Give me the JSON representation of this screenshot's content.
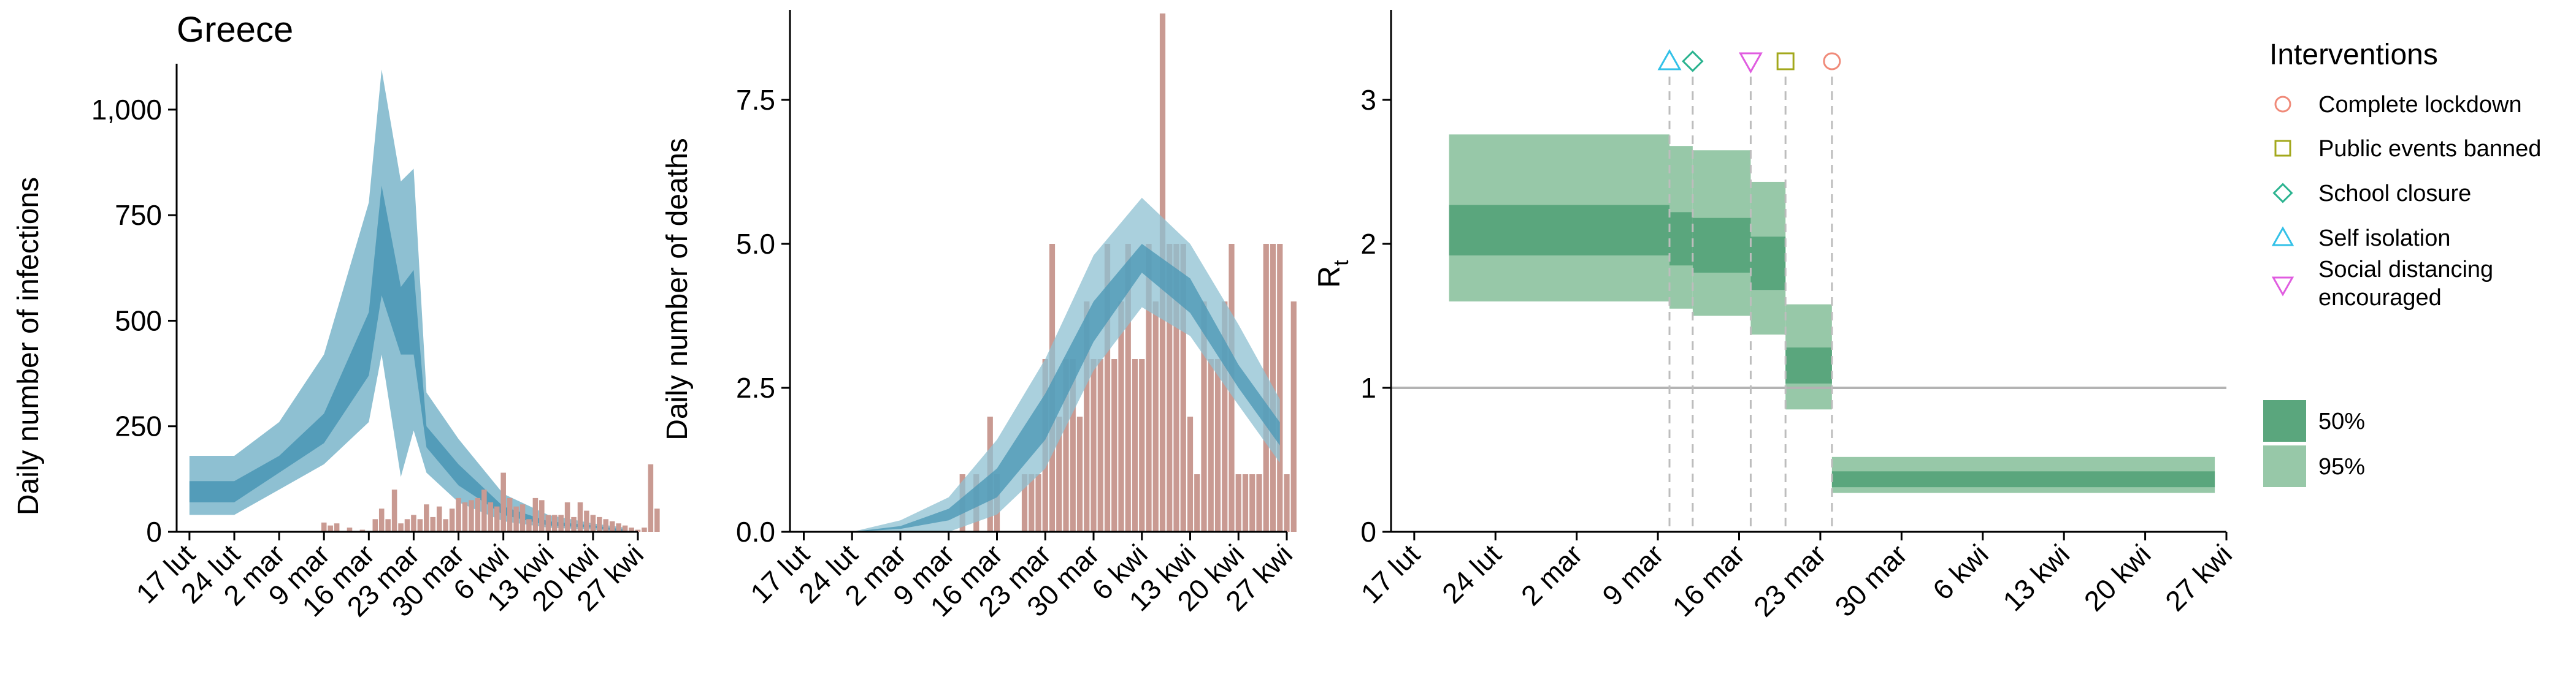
{
  "country_title": "Greece",
  "colors": {
    "bars": "#c99a92",
    "band_95_blue": "#8ec0d2",
    "band_50_blue": "#4d98b6",
    "line_blue": "#2a7ea0",
    "band_95_green": "#97c8a8",
    "band_50_green": "#5aa67d",
    "line_green": "#3f9463",
    "ref_line": "#b3b3b3",
    "intervention_line": "#bdbdbd"
  },
  "x_tick_labels": [
    "17 lut",
    "24 lut",
    "2 mar",
    "9 mar",
    "16 mar",
    "23 mar",
    "30 mar",
    "6 kwi",
    "13 kwi",
    "20 kwi",
    "27 kwi"
  ],
  "chart_data": [
    {
      "type": "bar",
      "id": "infections",
      "ylabel": "Daily number of infections",
      "ylim": [
        0,
        1100
      ],
      "yticks": [
        0,
        250,
        500,
        750,
        1000
      ],
      "ytick_labels": [
        "0",
        "250",
        "500",
        "750",
        "1,000"
      ],
      "x_range": [
        "2020-02-15",
        "2020-04-27"
      ],
      "bars": {
        "start": "2020-03-04",
        "values": [
          0,
          0,
          0,
          0,
          0,
          22,
          15,
          20,
          0,
          10,
          0,
          5,
          0,
          30,
          55,
          30,
          100,
          20,
          30,
          40,
          30,
          65,
          35,
          60,
          30,
          55,
          80,
          70,
          75,
          80,
          100,
          70,
          60,
          140,
          80,
          60,
          65,
          30,
          80,
          75,
          40,
          40,
          40,
          70,
          35,
          70,
          50,
          40,
          35,
          30,
          25,
          20,
          15,
          10,
          5,
          10,
          160,
          55
        ]
      },
      "band_dates": [
        "2020-02-17",
        "2020-02-24",
        "2020-03-02",
        "2020-03-09",
        "2020-03-16",
        "2020-03-18",
        "2020-03-21",
        "2020-03-23",
        "2020-03-25",
        "2020-03-30",
        "2020-04-06",
        "2020-04-13",
        "2020-04-20",
        "2020-04-25"
      ],
      "band_95_upper": [
        180,
        180,
        260,
        420,
        780,
        1095,
        830,
        860,
        330,
        220,
        90,
        40,
        20,
        10
      ],
      "band_95_lower": [
        40,
        40,
        100,
        160,
        260,
        420,
        130,
        240,
        140,
        70,
        25,
        10,
        5,
        0
      ],
      "band_50_upper": [
        120,
        120,
        180,
        280,
        520,
        820,
        580,
        620,
        250,
        160,
        60,
        25,
        15,
        5
      ],
      "band_50_lower": [
        70,
        70,
        140,
        210,
        370,
        560,
        420,
        420,
        200,
        110,
        40,
        15,
        10,
        0
      ]
    },
    {
      "type": "bar",
      "id": "deaths",
      "ylabel": "Daily number of deaths",
      "ylim": [
        0,
        9
      ],
      "yticks": [
        0,
        2.5,
        5,
        7.5
      ],
      "ytick_labels": [
        "0.0",
        "2.5",
        "5.0",
        "7.5"
      ],
      "x_range": [
        "2020-02-15",
        "2020-04-27"
      ],
      "bars": {
        "start": "2020-03-11",
        "values": [
          1,
          0,
          1,
          0,
          2,
          1,
          0,
          0,
          0,
          1,
          1,
          1,
          3,
          5,
          2,
          3,
          3,
          2,
          4,
          3,
          3,
          5,
          3,
          4,
          5,
          3,
          3,
          5,
          4,
          9,
          5,
          5,
          5,
          2,
          1,
          4,
          3,
          3,
          4,
          5,
          1,
          1,
          1,
          1,
          5,
          5,
          5,
          1,
          4
        ]
      },
      "band_dates": [
        "2020-02-24",
        "2020-03-02",
        "2020-03-09",
        "2020-03-16",
        "2020-03-23",
        "2020-03-30",
        "2020-04-06",
        "2020-04-13",
        "2020-04-20",
        "2020-04-26"
      ],
      "band_95_upper": [
        0,
        0.2,
        0.6,
        1.6,
        3.0,
        4.8,
        5.8,
        5.0,
        3.6,
        2.3
      ],
      "band_95_lower": [
        0,
        0,
        0,
        0.3,
        1.1,
        2.8,
        3.9,
        3.4,
        2.2,
        1.2
      ],
      "band_50_upper": [
        0,
        0.1,
        0.4,
        1.1,
        2.4,
        4.0,
        5.0,
        4.4,
        2.9,
        1.9
      ],
      "band_50_lower": [
        0,
        0.05,
        0.2,
        0.6,
        1.6,
        3.3,
        4.5,
        3.8,
        2.5,
        1.5
      ]
    },
    {
      "type": "step-band",
      "id": "rt",
      "ylabel_main": "R",
      "ylabel_sub": "t",
      "ylim": [
        0,
        3.6
      ],
      "yticks": [
        0,
        1,
        2,
        3
      ],
      "ytick_labels": [
        "0",
        "1",
        "2",
        "3"
      ],
      "x_range": [
        "2020-02-15",
        "2020-04-27"
      ],
      "reference_line": 1,
      "segments": [
        {
          "start": "2020-02-20",
          "end": "2020-03-10",
          "r50": [
            1.92,
            2.27
          ],
          "r95": [
            1.6,
            2.76
          ]
        },
        {
          "start": "2020-03-10",
          "end": "2020-03-12",
          "r50": [
            1.85,
            2.22
          ],
          "r95": [
            1.55,
            2.68
          ]
        },
        {
          "start": "2020-03-12",
          "end": "2020-03-17",
          "r50": [
            1.8,
            2.18
          ],
          "r95": [
            1.5,
            2.65
          ]
        },
        {
          "start": "2020-03-17",
          "end": "2020-03-20",
          "r50": [
            1.68,
            2.05
          ],
          "r95": [
            1.37,
            2.43
          ]
        },
        {
          "start": "2020-03-20",
          "end": "2020-03-24",
          "r50": [
            1.03,
            1.28
          ],
          "r95": [
            0.85,
            1.58
          ]
        },
        {
          "start": "2020-03-24",
          "end": "2020-04-26",
          "r50": [
            0.31,
            0.42
          ],
          "r95": [
            0.27,
            0.52
          ]
        }
      ],
      "interventions": [
        {
          "name": "Self isolation",
          "date": "2020-03-10",
          "marker": "triangle-up",
          "color": "#33c1e8"
        },
        {
          "name": "School closure",
          "date": "2020-03-12",
          "marker": "diamond",
          "color": "#2ab38f"
        },
        {
          "name": "Social distancing\n encouraged",
          "date": "2020-03-17",
          "marker": "triangle-down",
          "color": "#e05ce0"
        },
        {
          "name": "Public events banned",
          "date": "2020-03-20",
          "marker": "square",
          "color": "#a3a81c"
        },
        {
          "name": "Complete lockdown",
          "date": "2020-03-24",
          "marker": "circle",
          "color": "#f08a79"
        }
      ]
    }
  ],
  "legend": {
    "interventions_title": "Interventions",
    "interventions": [
      {
        "label": "Complete lockdown",
        "marker": "circle",
        "color": "#f08a79"
      },
      {
        "label": "Public events banned",
        "marker": "square",
        "color": "#a3a81c"
      },
      {
        "label": "School closure",
        "marker": "diamond",
        "color": "#2ab38f"
      },
      {
        "label": "Self isolation",
        "marker": "triangle-up",
        "color": "#33c1e8"
      },
      {
        "label": "Social distancing",
        "label_line2": " encouraged",
        "marker": "triangle-down",
        "color": "#e05ce0"
      }
    ],
    "bands": [
      {
        "label": "50%",
        "color": "#5aa67d"
      },
      {
        "label": "95%",
        "color": "#97c8a8"
      }
    ]
  }
}
